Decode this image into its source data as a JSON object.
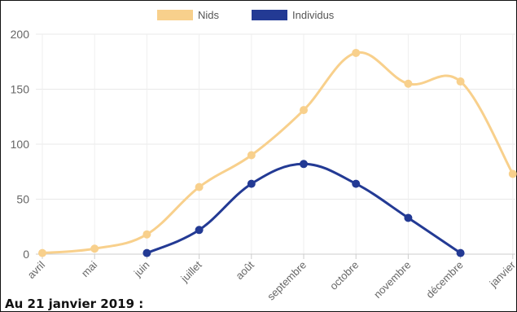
{
  "caption": "Au 21 janvier 2019 :",
  "chart_data": {
    "type": "line",
    "categories": [
      "avril",
      "mai",
      "juin",
      "juillet",
      "août",
      "septembre",
      "octobre",
      "novembre",
      "décembre",
      "janvier"
    ],
    "series": [
      {
        "name": "Nids",
        "color": "#f8d08c",
        "values": [
          1,
          5,
          18,
          61,
          90,
          131,
          183,
          155,
          157,
          73
        ]
      },
      {
        "name": "Individus",
        "color": "#233a94",
        "values": [
          null,
          null,
          1,
          22,
          64,
          82,
          64,
          33,
          1,
          null
        ]
      }
    ],
    "yticks": [
      0,
      50,
      100,
      150,
      200
    ],
    "ylim": [
      0,
      200
    ],
    "grid": true,
    "legend": "top-center",
    "title": "",
    "xlabel": "",
    "ylabel": ""
  }
}
